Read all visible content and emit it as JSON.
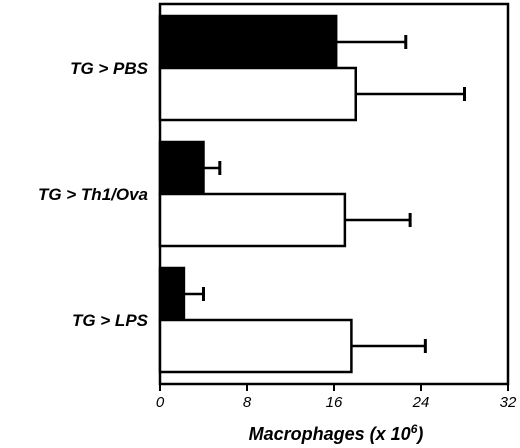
{
  "chart_data": {
    "type": "bar",
    "orientation": "horizontal",
    "categories": [
      "TG > PBS",
      "TG > Th1/Ova",
      "TG > LPS"
    ],
    "series": [
      {
        "color": "#000000",
        "values": [
          16.2,
          4.0,
          2.2
        ],
        "errors": [
          6.4,
          1.5,
          1.8
        ]
      },
      {
        "color": "#ffffff",
        "values": [
          18.0,
          17.0,
          17.6
        ],
        "errors": [
          10.0,
          6.0,
          6.8
        ]
      }
    ],
    "xlabel_main": "Macrophages (x 10",
    "xlabel_sup": "6",
    "xlabel_close": ")",
    "xlim": [
      0,
      32
    ],
    "xticks": [
      "0",
      "8",
      "16",
      "24",
      "32"
    ],
    "grid": false,
    "legend": false
  }
}
